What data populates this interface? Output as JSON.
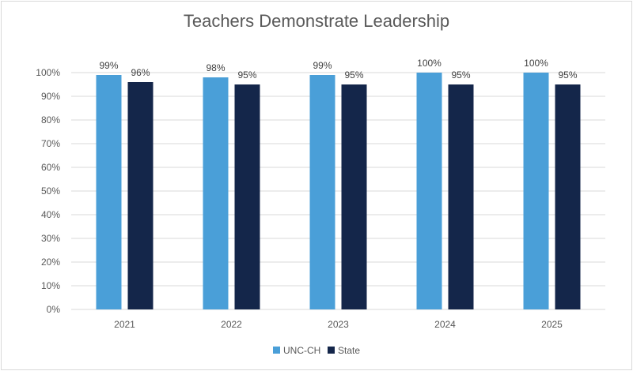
{
  "chart_data": {
    "type": "bar",
    "title": "Teachers Demonstrate Leadership",
    "xlabel": "",
    "ylabel": "",
    "categories": [
      "2021",
      "2022",
      "2023",
      "2024",
      "2025"
    ],
    "series": [
      {
        "name": "UNC-CH",
        "color": "#4a9fd8",
        "values": [
          99,
          98,
          99,
          100,
          100
        ],
        "labels": [
          "99%",
          "98%",
          "99%",
          "100%",
          "100%"
        ]
      },
      {
        "name": "State",
        "color": "#14264a",
        "values": [
          96,
          95,
          95,
          95,
          95
        ],
        "labels": [
          "96%",
          "95%",
          "95%",
          "95%",
          "95%"
        ]
      }
    ],
    "ylim": [
      0,
      100
    ],
    "yticks": [
      "0%",
      "10%",
      "20%",
      "30%",
      "40%",
      "50%",
      "60%",
      "70%",
      "80%",
      "90%",
      "100%"
    ],
    "grid": true,
    "legend_position": "bottom"
  }
}
